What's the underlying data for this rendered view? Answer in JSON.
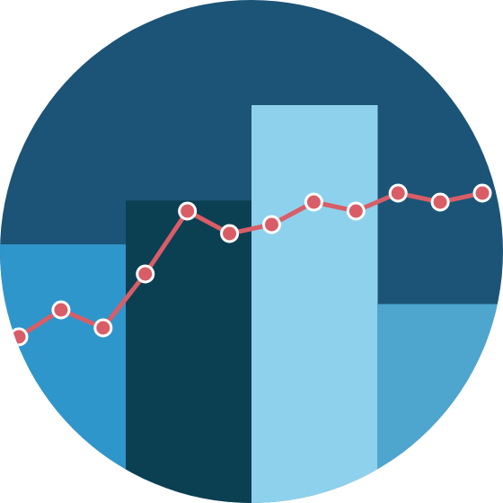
{
  "colors": {
    "background": "#1b5476",
    "bar_1": "#2f96cb",
    "bar_2": "#0b4052",
    "bar_3": "#8ed1ec",
    "bar_4": "#4ea6cf",
    "line": "#d95d67",
    "marker_stroke": "#ffffff"
  },
  "chart_data": {
    "type": "bar",
    "categories": [
      "",
      "",
      "",
      ""
    ],
    "values": [
      65,
      76,
      100,
      50
    ],
    "ylim": [
      0,
      100
    ],
    "grid": false,
    "legend": "none",
    "overlay_line": {
      "type": "line",
      "values": [
        45,
        51,
        47,
        59,
        73,
        68,
        70,
        75,
        73,
        77,
        75,
        77
      ],
      "ylim": [
        0,
        100
      ]
    }
  }
}
